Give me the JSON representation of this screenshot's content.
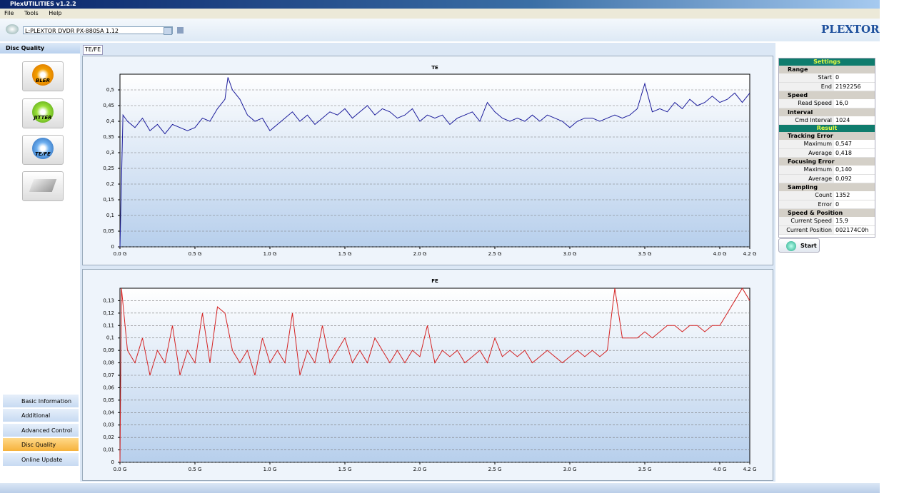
{
  "window": {
    "title": "PlexUTILITIES v1.2.2",
    "menu": [
      "File",
      "Tools",
      "Help"
    ]
  },
  "toolbar": {
    "drive": "L:PLEXTOR DVDR  PX-880SA  1.12",
    "brand": "PLEXTOR"
  },
  "sidebar": {
    "header": "Disc Quality",
    "tests": [
      "BLER",
      "JITTER",
      "TE/FE"
    ],
    "nav": [
      "Basic Information",
      "Additional Information",
      "Advanced Control",
      "Disc Quality",
      "Online Update"
    ]
  },
  "tab": "TE/FE",
  "chart_data": [
    {
      "type": "line",
      "title": "TE",
      "color": "#1a1a9a",
      "grid": true,
      "x": [
        0,
        0.02,
        0.05,
        0.1,
        0.15,
        0.2,
        0.25,
        0.3,
        0.35,
        0.4,
        0.45,
        0.5,
        0.55,
        0.6,
        0.65,
        0.7,
        0.72,
        0.75,
        0.8,
        0.85,
        0.9,
        0.95,
        1.0,
        1.05,
        1.1,
        1.15,
        1.2,
        1.25,
        1.3,
        1.35,
        1.4,
        1.45,
        1.5,
        1.55,
        1.6,
        1.65,
        1.7,
        1.75,
        1.8,
        1.85,
        1.9,
        1.95,
        2.0,
        2.05,
        2.1,
        2.15,
        2.2,
        2.25,
        2.3,
        2.35,
        2.4,
        2.45,
        2.5,
        2.55,
        2.6,
        2.65,
        2.7,
        2.75,
        2.8,
        2.85,
        2.9,
        2.95,
        3.0,
        3.05,
        3.1,
        3.15,
        3.2,
        3.25,
        3.3,
        3.35,
        3.4,
        3.45,
        3.5,
        3.55,
        3.6,
        3.65,
        3.7,
        3.75,
        3.8,
        3.85,
        3.9,
        3.95,
        4.0,
        4.05,
        4.1,
        4.15,
        4.2
      ],
      "values": [
        0,
        0.42,
        0.4,
        0.38,
        0.41,
        0.37,
        0.39,
        0.36,
        0.39,
        0.38,
        0.37,
        0.38,
        0.41,
        0.4,
        0.44,
        0.47,
        0.54,
        0.5,
        0.47,
        0.42,
        0.4,
        0.41,
        0.37,
        0.39,
        0.41,
        0.43,
        0.4,
        0.42,
        0.39,
        0.41,
        0.43,
        0.42,
        0.44,
        0.41,
        0.43,
        0.45,
        0.42,
        0.44,
        0.43,
        0.41,
        0.42,
        0.44,
        0.4,
        0.42,
        0.41,
        0.42,
        0.39,
        0.41,
        0.42,
        0.43,
        0.4,
        0.46,
        0.43,
        0.41,
        0.4,
        0.41,
        0.4,
        0.42,
        0.4,
        0.42,
        0.41,
        0.4,
        0.38,
        0.4,
        0.41,
        0.41,
        0.4,
        0.41,
        0.42,
        0.41,
        0.42,
        0.44,
        0.52,
        0.43,
        0.44,
        0.43,
        0.46,
        0.44,
        0.47,
        0.45,
        0.46,
        0.48,
        0.46,
        0.47,
        0.49,
        0.46,
        0.49
      ],
      "xlim": [
        0,
        4.2
      ],
      "xticks": [
        {
          "value": 0,
          "label": "0.0 G"
        },
        {
          "value": 0.5,
          "label": "0.5 G"
        },
        {
          "value": 1,
          "label": "1.0 G"
        },
        {
          "value": 1.5,
          "label": "1.5 G"
        },
        {
          "value": 2,
          "label": "2.0 G"
        },
        {
          "value": 2.5,
          "label": "2.5 G"
        },
        {
          "value": 3,
          "label": "3.0 G"
        },
        {
          "value": 3.5,
          "label": "3.5 G"
        },
        {
          "value": 4,
          "label": "4.0 G"
        },
        {
          "value": 4.2,
          "label": "4.2 G"
        }
      ],
      "ylim": [
        0,
        0.55
      ],
      "yticks": [
        0,
        {
          "value": 0.05,
          "label": "0,05"
        },
        {
          "value": 0.1,
          "label": "0,1"
        },
        {
          "value": 0.15,
          "label": "0,15"
        },
        {
          "value": 0.2,
          "label": "0,2"
        },
        {
          "value": 0.25,
          "label": "0,25"
        },
        {
          "value": 0.3,
          "label": "0,3"
        },
        {
          "value": 0.35,
          "label": "0,35"
        },
        {
          "value": 0.4,
          "label": "0,4"
        },
        {
          "value": 0.45,
          "label": "0,45"
        },
        {
          "value": 0.5,
          "label": "0,5"
        }
      ]
    },
    {
      "type": "line",
      "title": "FE",
      "color": "#d42020",
      "grid": true,
      "x": [
        0,
        0.01,
        0.05,
        0.1,
        0.15,
        0.2,
        0.25,
        0.3,
        0.35,
        0.4,
        0.45,
        0.5,
        0.55,
        0.6,
        0.65,
        0.7,
        0.75,
        0.8,
        0.85,
        0.9,
        0.95,
        1.0,
        1.05,
        1.1,
        1.15,
        1.2,
        1.25,
        1.3,
        1.35,
        1.4,
        1.45,
        1.5,
        1.55,
        1.6,
        1.65,
        1.7,
        1.75,
        1.8,
        1.85,
        1.9,
        1.95,
        2.0,
        2.05,
        2.1,
        2.15,
        2.2,
        2.25,
        2.3,
        2.35,
        2.4,
        2.45,
        2.5,
        2.55,
        2.6,
        2.65,
        2.7,
        2.75,
        2.8,
        2.85,
        2.9,
        2.95,
        3.0,
        3.05,
        3.1,
        3.15,
        3.2,
        3.25,
        3.28,
        3.3,
        3.35,
        3.4,
        3.45,
        3.5,
        3.55,
        3.6,
        3.65,
        3.7,
        3.75,
        3.8,
        3.85,
        3.9,
        3.95,
        4.0,
        4.05,
        4.1,
        4.15,
        4.2
      ],
      "values": [
        0,
        0.14,
        0.09,
        0.08,
        0.1,
        0.07,
        0.09,
        0.08,
        0.11,
        0.07,
        0.09,
        0.08,
        0.12,
        0.08,
        0.125,
        0.12,
        0.09,
        0.08,
        0.09,
        0.07,
        0.1,
        0.08,
        0.09,
        0.08,
        0.12,
        0.07,
        0.09,
        0.08,
        0.11,
        0.08,
        0.09,
        0.1,
        0.08,
        0.09,
        0.08,
        0.1,
        0.09,
        0.08,
        0.09,
        0.08,
        0.09,
        0.085,
        0.11,
        0.08,
        0.09,
        0.085,
        0.09,
        0.08,
        0.085,
        0.09,
        0.08,
        0.1,
        0.085,
        0.09,
        0.085,
        0.09,
        0.08,
        0.085,
        0.09,
        0.085,
        0.08,
        0.085,
        0.09,
        0.085,
        0.09,
        0.085,
        0.09,
        0.12,
        0.14,
        0.1,
        0.1,
        0.1,
        0.105,
        0.1,
        0.105,
        0.11,
        0.11,
        0.105,
        0.11,
        0.11,
        0.105,
        0.11,
        0.11,
        0.12,
        0.13,
        0.14,
        0.13
      ],
      "xlim": [
        0,
        4.2
      ],
      "xticks": [
        {
          "value": 0,
          "label": "0.0 G"
        },
        {
          "value": 0.5,
          "label": "0.5 G"
        },
        {
          "value": 1,
          "label": "1.0 G"
        },
        {
          "value": 1.5,
          "label": "1.5 G"
        },
        {
          "value": 2,
          "label": "2.0 G"
        },
        {
          "value": 2.5,
          "label": "2.5 G"
        },
        {
          "value": 3,
          "label": "3.0 G"
        },
        {
          "value": 3.5,
          "label": "3.5 G"
        },
        {
          "value": 4,
          "label": "4.0 G"
        },
        {
          "value": 4.2,
          "label": "4.2 G"
        }
      ],
      "ylim": [
        0,
        0.14
      ],
      "yticks": [
        0,
        {
          "value": 0.01,
          "label": "0,01"
        },
        {
          "value": 0.02,
          "label": "0,02"
        },
        {
          "value": 0.03,
          "label": "0,03"
        },
        {
          "value": 0.04,
          "label": "0,04"
        },
        {
          "value": 0.05,
          "label": "0,05"
        },
        {
          "value": 0.06,
          "label": "0,06"
        },
        {
          "value": 0.07,
          "label": "0,07"
        },
        {
          "value": 0.08,
          "label": "0,08"
        },
        {
          "value": 0.09,
          "label": "0,09"
        },
        {
          "value": 0.1,
          "label": "0,1"
        },
        {
          "value": 0.11,
          "label": "0,11"
        },
        {
          "value": 0.12,
          "label": "0,12"
        },
        {
          "value": 0.13,
          "label": "0,13"
        }
      ]
    }
  ],
  "panel": {
    "settings_header": "Settings",
    "settings": [
      {
        "name": "Range",
        "rows": [
          [
            "Start",
            "0"
          ],
          [
            "End",
            "2192256"
          ]
        ]
      },
      {
        "name": "Speed",
        "rows": [
          [
            "Read Speed",
            "16,0"
          ]
        ]
      },
      {
        "name": "Interval",
        "rows": [
          [
            "Cmd Interval",
            "1024"
          ]
        ]
      }
    ],
    "result_header": "Result",
    "result": [
      {
        "name": "Tracking Error",
        "rows": [
          [
            "Maximum",
            "0,547"
          ],
          [
            "Average",
            "0,418"
          ]
        ]
      },
      {
        "name": "Focusing Error",
        "rows": [
          [
            "Maximum",
            "0,140"
          ],
          [
            "Average",
            "0,092"
          ]
        ]
      },
      {
        "name": "Sampling",
        "rows": [
          [
            "Count",
            "1352"
          ],
          [
            "Error",
            "0"
          ]
        ]
      },
      {
        "name": "Speed & Position",
        "rows": [
          [
            "Current Speed",
            "15,9"
          ],
          [
            "Current Position",
            "002174C0h"
          ]
        ]
      }
    ],
    "start": "Start"
  }
}
